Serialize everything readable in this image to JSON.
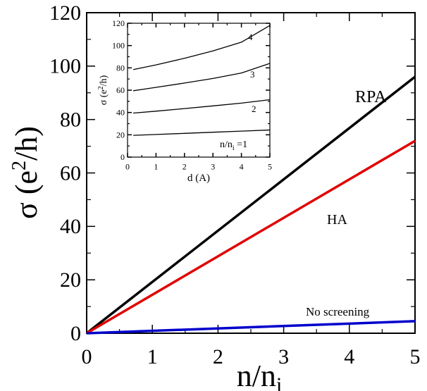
{
  "chart_data": [
    {
      "type": "line",
      "role": "main",
      "xlabel_base": "n/n",
      "xlabel_sub": "i",
      "ylabel_base": "σ (e",
      "ylabel_sup": "2",
      "ylabel_tail": "/h)",
      "xlim": [
        0,
        5
      ],
      "ylim": [
        0,
        120
      ],
      "xticks": [
        "0",
        "1",
        "2",
        "3",
        "4",
        "5"
      ],
      "yticks": [
        "0",
        "20",
        "40",
        "60",
        "80",
        "100",
        "120"
      ],
      "grid": false,
      "series": [
        {
          "name": "RPA",
          "color": "#000000",
          "x": [
            0,
            5
          ],
          "y": [
            0,
            96
          ]
        },
        {
          "name": "HA",
          "color": "#e00000",
          "x": [
            0,
            5
          ],
          "y": [
            0,
            72
          ]
        },
        {
          "name": "No screening",
          "color": "#0000cc",
          "x": [
            0,
            5
          ],
          "y": [
            0,
            4.5
          ]
        }
      ]
    },
    {
      "type": "line",
      "role": "inset",
      "xlabel": "d (A)",
      "ylabel_base": "σ (e",
      "ylabel_sup": "2",
      "ylabel_tail": "/h)",
      "xlim": [
        0,
        5
      ],
      "ylim": [
        0,
        120
      ],
      "xticks": [
        "0",
        "1",
        "2",
        "3",
        "4",
        "5"
      ],
      "yticks": [
        "0",
        "20",
        "40",
        "60",
        "80",
        "100",
        "120"
      ],
      "grid": false,
      "series": [
        {
          "name": "n/n",
          "name_sub": "i",
          "name_tail": " =1",
          "color": "#000000",
          "x": [
            0.2,
            1,
            2,
            3,
            4,
            5
          ],
          "y": [
            19.5,
            20.3,
            21.3,
            22.3,
            23.3,
            24.3
          ]
        },
        {
          "name": "2",
          "color": "#000000",
          "x": [
            0.2,
            1,
            2,
            3,
            4,
            5
          ],
          "y": [
            39.5,
            41.2,
            43.5,
            45.9,
            48.4,
            51.5
          ]
        },
        {
          "name": "3",
          "color": "#000000",
          "x": [
            0.2,
            1,
            2,
            3,
            4,
            5
          ],
          "y": [
            59.5,
            62.5,
            66.4,
            70.5,
            75.4,
            84
          ]
        },
        {
          "name": "4",
          "color": "#000000",
          "x": [
            0.2,
            1,
            2,
            3,
            4,
            5
          ],
          "y": [
            78.5,
            82.7,
            88.6,
            95.2,
            103,
            118
          ]
        }
      ]
    }
  ]
}
